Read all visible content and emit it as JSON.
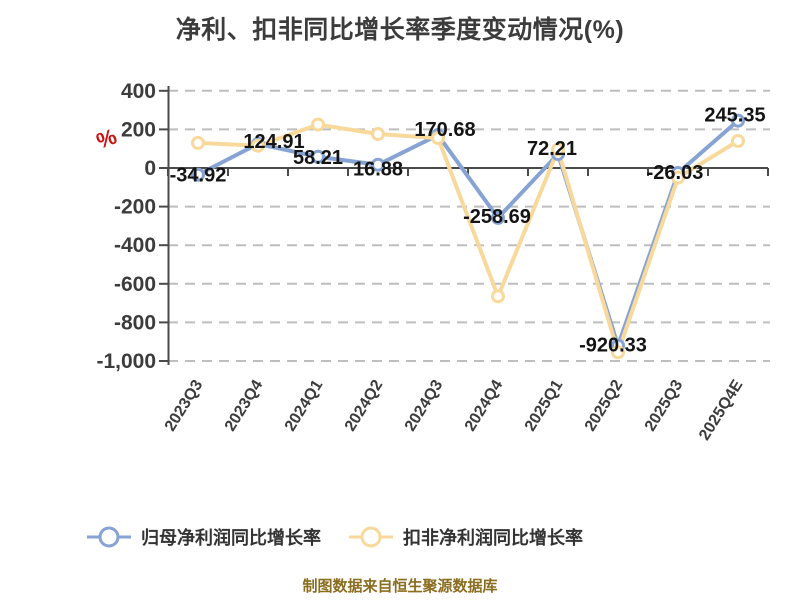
{
  "title": "净利、扣非同比增长率季度变动情况(%)",
  "unit_label": "%",
  "footer": "制图数据来自恒生聚源数据库",
  "colors": {
    "net_profit_series": "#86a3d3",
    "deducted_series": "#f8d99b",
    "grid": "#bebebe",
    "axis": "#4a4a4a",
    "tick_text": "#3c3c3c",
    "value_label_text": "#141414",
    "unit_red": "#cc1111",
    "footer_text": "#8a6d1f",
    "marker_fill": "#ffffff",
    "title_text": "#3c3c3c",
    "legend_text": "#333333"
  },
  "chart_data": {
    "type": "line",
    "title": "净利、扣非同比增长率季度变动情况(%)",
    "xlabel": "",
    "ylabel": "%",
    "categories": [
      "2023Q3",
      "2023Q4",
      "2024Q1",
      "2024Q2",
      "2024Q3",
      "2024Q4",
      "2025Q1",
      "2025Q2",
      "2025Q3",
      "2025Q4E"
    ],
    "series": [
      {
        "name": "归母净利润同比增长率",
        "color": "#86a3d3",
        "values": [
          -34.92,
          124.91,
          58.21,
          16.88,
          170.68,
          -258.69,
          72.21,
          -920.33,
          -26.03,
          245.35
        ],
        "labels": [
          "-34.92",
          "124.91",
          "58.21",
          "16.88",
          "170.68",
          "-258.69",
          "72.21",
          "-920.33",
          "-26.03",
          "245.35"
        ],
        "show_labels": true
      },
      {
        "name": "扣非净利润同比增长率",
        "color": "#f8d99b",
        "values": [
          130,
          115,
          225,
          176,
          155,
          -665,
          95,
          -955,
          -50,
          140
        ],
        "labels": [],
        "show_labels": false
      }
    ],
    "ylim": [
      -1000,
      400
    ],
    "yticks": [
      400,
      200,
      0,
      -200,
      -400,
      -600,
      -800,
      -1000
    ],
    "ytick_labels": [
      "400",
      "200",
      "0",
      "-200",
      "-400",
      "-600",
      "-800",
      "-1,000"
    ],
    "grid": "horizontal-dashed",
    "legend_position": "bottom"
  }
}
